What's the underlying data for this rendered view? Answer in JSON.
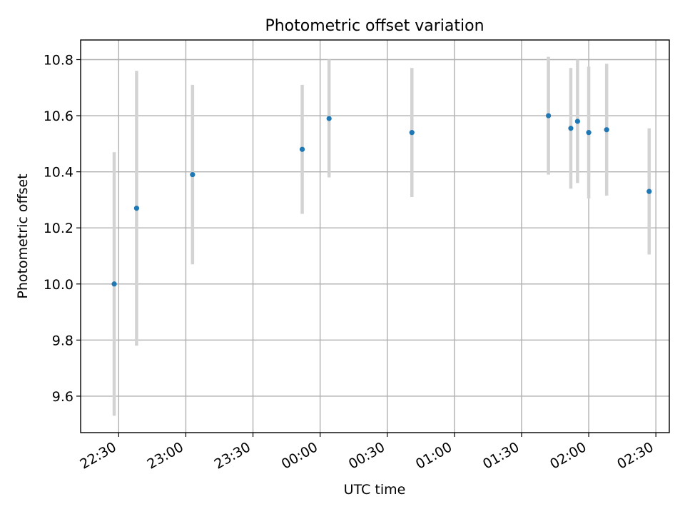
{
  "chart_data": {
    "type": "scatter",
    "title": "Photometric offset variation",
    "xlabel": "UTC time",
    "ylabel": "Photometric offset",
    "x_ticks": [
      "22:30",
      "23:00",
      "23:30",
      "00:00",
      "00:30",
      "01:00",
      "01:30",
      "02:00",
      "02:30"
    ],
    "y_ticks": [
      "9.6",
      "9.8",
      "10.0",
      "10.2",
      "10.4",
      "10.6",
      "10.8"
    ],
    "xlim": [
      "22:13",
      "02:36"
    ],
    "ylim": [
      9.47,
      10.87
    ],
    "grid": true,
    "marker_color": "#1f77b4",
    "errorbar_color": "#d3d3d3",
    "points": [
      {
        "time": "22:28",
        "y": 10.0,
        "yerr": 0.47
      },
      {
        "time": "22:38",
        "y": 10.27,
        "yerr": 0.49
      },
      {
        "time": "23:03",
        "y": 10.39,
        "yerr": 0.32
      },
      {
        "time": "23:52",
        "y": 10.48,
        "yerr": 0.23
      },
      {
        "time": "00:04",
        "y": 10.59,
        "yerr": 0.21
      },
      {
        "time": "00:41",
        "y": 10.54,
        "yerr": 0.23
      },
      {
        "time": "01:42",
        "y": 10.6,
        "yerr": 0.21
      },
      {
        "time": "01:52",
        "y": 10.555,
        "yerr": 0.215
      },
      {
        "time": "01:55",
        "y": 10.58,
        "yerr": 0.22
      },
      {
        "time": "02:00",
        "y": 10.54,
        "yerr": 0.235
      },
      {
        "time": "02:08",
        "y": 10.55,
        "yerr": 0.235
      },
      {
        "time": "02:27",
        "y": 10.33,
        "yerr": 0.225
      }
    ]
  }
}
